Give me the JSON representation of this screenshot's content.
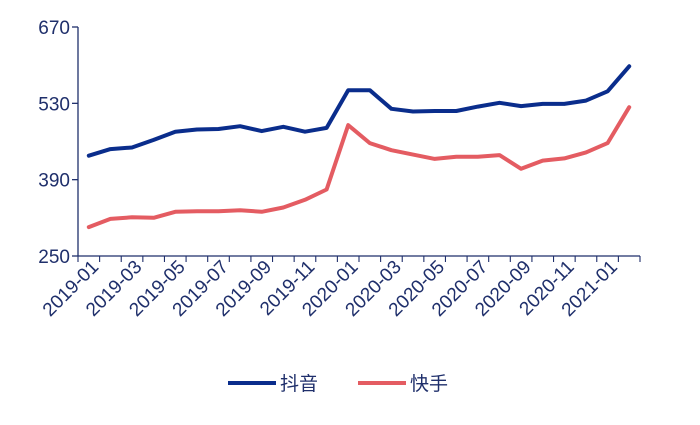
{
  "chart_data": {
    "type": "line",
    "title": "",
    "xlabel": "",
    "ylabel": "",
    "ylim": [
      250,
      670
    ],
    "y_ticks": [
      "250",
      "390",
      "530",
      "670"
    ],
    "x_tick_labels": [
      "2019-01",
      "2019-03",
      "2019-05",
      "2019-07",
      "2019-09",
      "2019-11",
      "2020-01",
      "2020-03",
      "2020-05",
      "2020-07",
      "2020-09",
      "2020-11",
      "2021-01"
    ],
    "x": [
      "2019-01",
      "2019-02",
      "2019-03",
      "2019-04",
      "2019-05",
      "2019-06",
      "2019-07",
      "2019-08",
      "2019-09",
      "2019-10",
      "2019-11",
      "2019-12",
      "2020-01",
      "2020-02",
      "2020-03",
      "2020-04",
      "2020-05",
      "2020-06",
      "2020-07",
      "2020-08",
      "2020-09",
      "2020-10",
      "2020-11",
      "2020-12",
      "2021-01",
      "2021-02"
    ],
    "grid": false,
    "legend_position": "bottom",
    "series": [
      {
        "name": "抖音",
        "color": "#0a2d8c",
        "values": [
          434,
          446,
          449,
          463,
          478,
          482,
          483,
          488,
          479,
          487,
          478,
          485,
          554,
          554,
          520,
          515,
          516,
          516,
          524,
          531,
          525,
          529,
          529,
          535,
          552,
          598
        ]
      },
      {
        "name": "快手",
        "color": "#e45c62",
        "values": [
          303,
          318,
          321,
          320,
          331,
          332,
          332,
          334,
          331,
          339,
          353,
          372,
          490,
          457,
          444,
          436,
          428,
          432,
          432,
          435,
          410,
          425,
          429,
          440,
          457,
          523
        ]
      }
    ]
  }
}
